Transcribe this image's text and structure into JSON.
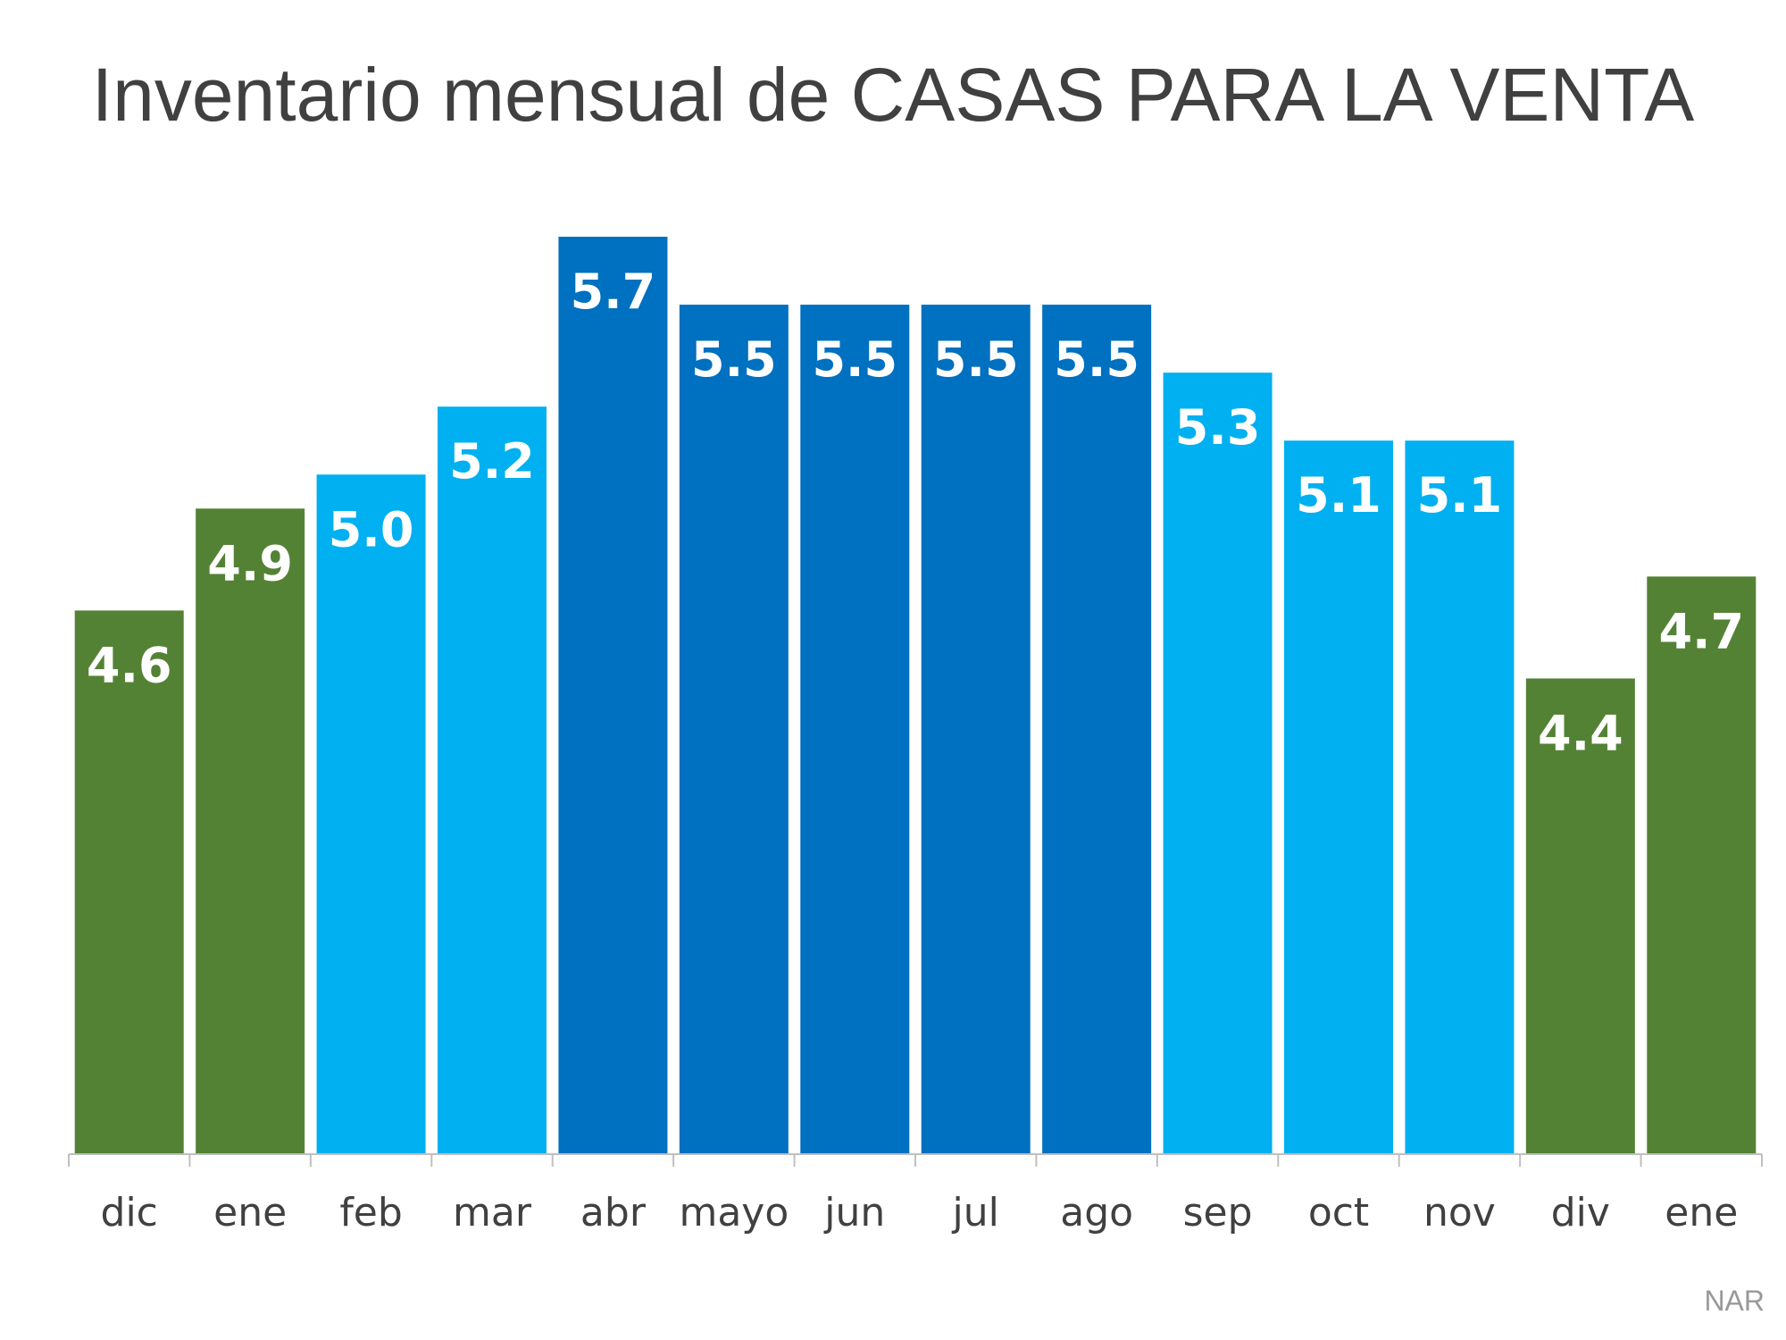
{
  "chart_data": {
    "type": "bar",
    "title": "Inventario mensual de CASAS PARA LA VENTA",
    "categories": [
      "dic",
      "ene",
      "feb",
      "mar",
      "abr",
      "mayo",
      "jun",
      "jul",
      "ago",
      "sep",
      "oct",
      "nov",
      "div",
      "ene"
    ],
    "values": [
      4.6,
      4.9,
      5.0,
      5.2,
      5.7,
      5.5,
      5.5,
      5.5,
      5.5,
      5.3,
      5.1,
      5.1,
      4.4,
      4.7
    ],
    "value_labels": [
      "4.6",
      "4.9",
      "5.0",
      "5.2",
      "5.7",
      "5.5",
      "5.5",
      "5.5",
      "5.5",
      "5.3",
      "5.1",
      "5.1",
      "4.4",
      "4.7"
    ],
    "bar_colors": [
      "#548235",
      "#548235",
      "#00B0F0",
      "#00B0F0",
      "#0070C0",
      "#0070C0",
      "#0070C0",
      "#0070C0",
      "#0070C0",
      "#00B0F0",
      "#00B0F0",
      "#00B0F0",
      "#548235",
      "#548235"
    ],
    "xlabel": "",
    "ylabel": "",
    "ylim": [
      3.0,
      5.7
    ],
    "grid": false,
    "legend": false
  },
  "source": "NAR"
}
